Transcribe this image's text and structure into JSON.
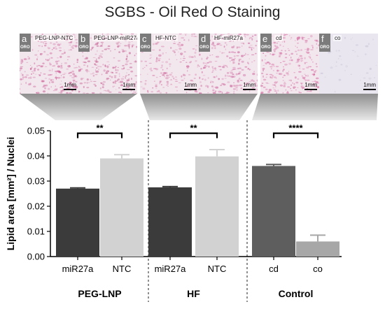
{
  "figure_title": "SGBS - Oil Red O Staining",
  "stain_tag": "ORO",
  "scale_label": "1mm",
  "panels": [
    {
      "letter": "a",
      "name": "PEG-LNP-NTC",
      "stain": "strong",
      "tint": "#c9568f"
    },
    {
      "letter": "b",
      "name": "PEG-LNP-miR27a",
      "stain": "strong",
      "tint": "#c4578c"
    },
    {
      "letter": "c",
      "name": "HF-NTC",
      "stain": "medium",
      "tint": "#cf6a9c"
    },
    {
      "letter": "d",
      "name": "HF-miR27a",
      "stain": "strong",
      "tint": "#c95793"
    },
    {
      "letter": "e",
      "name": "cd",
      "stain": "strong",
      "tint": "#cf5a95"
    },
    {
      "letter": "f",
      "name": "co",
      "stain": "faint",
      "tint": "#b0a6c2"
    }
  ],
  "chart_data": {
    "type": "bar",
    "ylabel": "Lipid area [mm²] / Nuclei",
    "ylim": [
      0,
      0.05
    ],
    "yticks": [
      "0.00",
      "0.01",
      "0.02",
      "0.03",
      "0.04",
      "0.05"
    ],
    "categories": [
      "miR27a",
      "NTC",
      "miR27a",
      "NTC",
      "cd",
      "co"
    ],
    "values": [
      0.027,
      0.039,
      0.0275,
      0.0398,
      0.036,
      0.006
    ],
    "errors": [
      0.0003,
      0.0015,
      0.0003,
      0.0027,
      0.0006,
      0.0025
    ],
    "bar_colors": [
      "#3b3b3b",
      "#d2d2d2",
      "#3b3b3b",
      "#d2d2d2",
      "#5e5e5e",
      "#a7a7a7"
    ],
    "groups": [
      {
        "name": "PEG-LNP",
        "bars": [
          0,
          1
        ]
      },
      {
        "name": "HF",
        "bars": [
          2,
          3
        ]
      },
      {
        "name": "Control",
        "bars": [
          4,
          5
        ]
      }
    ],
    "significance": [
      {
        "bars": [
          0,
          1
        ],
        "label": "**",
        "y": 0.049
      },
      {
        "bars": [
          2,
          3
        ],
        "label": "**",
        "y": 0.049
      },
      {
        "bars": [
          4,
          5
        ],
        "label": "****",
        "y": 0.049
      }
    ],
    "grid": false
  }
}
